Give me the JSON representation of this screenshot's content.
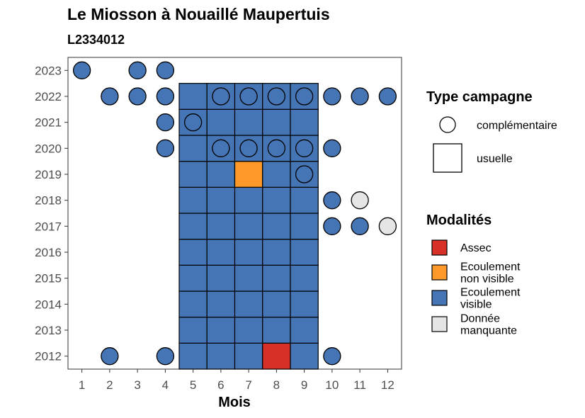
{
  "header": {
    "title": "Le Miosson à Nouaillé Maupertuis",
    "subtitle": "L2334012"
  },
  "colors": {
    "Assec": "#d73027",
    "Ecoulement non visible": "#fe9929",
    "Ecoulement visible": "#4575b4",
    "Donnée manquante": "#e5e5e5"
  },
  "legend": {
    "shape_title": "Type campagne",
    "shape_items": [
      {
        "shape": "circle",
        "label": "complémentaire"
      },
      {
        "shape": "square",
        "label": "usuelle"
      }
    ],
    "color_title": "Modalités",
    "color_items": [
      {
        "key": "Assec",
        "lines": [
          "Assec"
        ]
      },
      {
        "key": "Ecoulement non visible",
        "lines": [
          "Ecoulement",
          "non visible"
        ]
      },
      {
        "key": "Ecoulement visible",
        "lines": [
          "Ecoulement",
          "visible"
        ]
      },
      {
        "key": "Donnée manquante",
        "lines": [
          "Donnée",
          "manquante"
        ]
      }
    ]
  },
  "chart_data": {
    "type": "heatmap",
    "title": "Le Miosson à Nouaillé Maupertuis",
    "subtitle": "L2334012",
    "xlabel": "Mois",
    "ylabel": "",
    "x_ticks": [
      1,
      2,
      3,
      4,
      5,
      6,
      7,
      8,
      9,
      10,
      11,
      12
    ],
    "y_ticks": [
      2012,
      2013,
      2014,
      2015,
      2016,
      2017,
      2018,
      2019,
      2020,
      2021,
      2022,
      2023
    ],
    "xlim": [
      0.5,
      12.5
    ],
    "ylim": [
      2011.5,
      2023.5
    ],
    "usuelle": [
      {
        "year": 2012,
        "month": 5,
        "value": "Ecoulement visible"
      },
      {
        "year": 2012,
        "month": 6,
        "value": "Ecoulement visible"
      },
      {
        "year": 2012,
        "month": 7,
        "value": "Ecoulement visible"
      },
      {
        "year": 2012,
        "month": 8,
        "value": "Assec"
      },
      {
        "year": 2012,
        "month": 9,
        "value": "Ecoulement visible"
      },
      {
        "year": 2013,
        "month": 5,
        "value": "Ecoulement visible"
      },
      {
        "year": 2013,
        "month": 6,
        "value": "Ecoulement visible"
      },
      {
        "year": 2013,
        "month": 7,
        "value": "Ecoulement visible"
      },
      {
        "year": 2013,
        "month": 8,
        "value": "Ecoulement visible"
      },
      {
        "year": 2013,
        "month": 9,
        "value": "Ecoulement visible"
      },
      {
        "year": 2014,
        "month": 5,
        "value": "Ecoulement visible"
      },
      {
        "year": 2014,
        "month": 6,
        "value": "Ecoulement visible"
      },
      {
        "year": 2014,
        "month": 7,
        "value": "Ecoulement visible"
      },
      {
        "year": 2014,
        "month": 8,
        "value": "Ecoulement visible"
      },
      {
        "year": 2014,
        "month": 9,
        "value": "Ecoulement visible"
      },
      {
        "year": 2015,
        "month": 5,
        "value": "Ecoulement visible"
      },
      {
        "year": 2015,
        "month": 6,
        "value": "Ecoulement visible"
      },
      {
        "year": 2015,
        "month": 7,
        "value": "Ecoulement visible"
      },
      {
        "year": 2015,
        "month": 8,
        "value": "Ecoulement visible"
      },
      {
        "year": 2015,
        "month": 9,
        "value": "Ecoulement visible"
      },
      {
        "year": 2016,
        "month": 5,
        "value": "Ecoulement visible"
      },
      {
        "year": 2016,
        "month": 6,
        "value": "Ecoulement visible"
      },
      {
        "year": 2016,
        "month": 7,
        "value": "Ecoulement visible"
      },
      {
        "year": 2016,
        "month": 8,
        "value": "Ecoulement visible"
      },
      {
        "year": 2016,
        "month": 9,
        "value": "Ecoulement visible"
      },
      {
        "year": 2017,
        "month": 5,
        "value": "Ecoulement visible"
      },
      {
        "year": 2017,
        "month": 6,
        "value": "Ecoulement visible"
      },
      {
        "year": 2017,
        "month": 7,
        "value": "Ecoulement visible"
      },
      {
        "year": 2017,
        "month": 8,
        "value": "Ecoulement visible"
      },
      {
        "year": 2017,
        "month": 9,
        "value": "Ecoulement visible"
      },
      {
        "year": 2018,
        "month": 5,
        "value": "Ecoulement visible"
      },
      {
        "year": 2018,
        "month": 6,
        "value": "Ecoulement visible"
      },
      {
        "year": 2018,
        "month": 7,
        "value": "Ecoulement visible"
      },
      {
        "year": 2018,
        "month": 8,
        "value": "Ecoulement visible"
      },
      {
        "year": 2018,
        "month": 9,
        "value": "Ecoulement visible"
      },
      {
        "year": 2019,
        "month": 5,
        "value": "Ecoulement visible"
      },
      {
        "year": 2019,
        "month": 6,
        "value": "Ecoulement visible"
      },
      {
        "year": 2019,
        "month": 7,
        "value": "Ecoulement non visible"
      },
      {
        "year": 2019,
        "month": 8,
        "value": "Ecoulement visible"
      },
      {
        "year": 2019,
        "month": 9,
        "value": "Ecoulement visible"
      },
      {
        "year": 2020,
        "month": 5,
        "value": "Ecoulement visible"
      },
      {
        "year": 2020,
        "month": 6,
        "value": "Ecoulement visible"
      },
      {
        "year": 2020,
        "month": 7,
        "value": "Ecoulement visible"
      },
      {
        "year": 2020,
        "month": 8,
        "value": "Ecoulement visible"
      },
      {
        "year": 2020,
        "month": 9,
        "value": "Ecoulement visible"
      },
      {
        "year": 2021,
        "month": 5,
        "value": "Ecoulement visible"
      },
      {
        "year": 2021,
        "month": 6,
        "value": "Ecoulement visible"
      },
      {
        "year": 2021,
        "month": 7,
        "value": "Ecoulement visible"
      },
      {
        "year": 2021,
        "month": 8,
        "value": "Ecoulement visible"
      },
      {
        "year": 2021,
        "month": 9,
        "value": "Ecoulement visible"
      },
      {
        "year": 2022,
        "month": 5,
        "value": "Ecoulement visible"
      },
      {
        "year": 2022,
        "month": 6,
        "value": "Ecoulement visible"
      },
      {
        "year": 2022,
        "month": 7,
        "value": "Ecoulement visible"
      },
      {
        "year": 2022,
        "month": 8,
        "value": "Ecoulement visible"
      },
      {
        "year": 2022,
        "month": 9,
        "value": "Ecoulement visible"
      }
    ],
    "complementaire": [
      {
        "year": 2012,
        "month": 2,
        "value": "Ecoulement visible"
      },
      {
        "year": 2012,
        "month": 4,
        "value": "Ecoulement visible"
      },
      {
        "year": 2012,
        "month": 10,
        "value": "Ecoulement visible"
      },
      {
        "year": 2017,
        "month": 10,
        "value": "Ecoulement visible"
      },
      {
        "year": 2017,
        "month": 11,
        "value": "Ecoulement visible"
      },
      {
        "year": 2017,
        "month": 12,
        "value": "Donnée manquante"
      },
      {
        "year": 2018,
        "month": 10,
        "value": "Ecoulement visible"
      },
      {
        "year": 2018,
        "month": 11,
        "value": "Donnée manquante"
      },
      {
        "year": 2019,
        "month": 9,
        "value": "Ecoulement visible"
      },
      {
        "year": 2020,
        "month": 4,
        "value": "Ecoulement visible"
      },
      {
        "year": 2020,
        "month": 6,
        "value": "Ecoulement visible"
      },
      {
        "year": 2020,
        "month": 7,
        "value": "Ecoulement visible"
      },
      {
        "year": 2020,
        "month": 8,
        "value": "Ecoulement visible"
      },
      {
        "year": 2020,
        "month": 9,
        "value": "Ecoulement visible"
      },
      {
        "year": 2020,
        "month": 10,
        "value": "Ecoulement visible"
      },
      {
        "year": 2021,
        "month": 4,
        "value": "Ecoulement visible"
      },
      {
        "year": 2021,
        "month": 5,
        "value": "Ecoulement visible"
      },
      {
        "year": 2022,
        "month": 2,
        "value": "Ecoulement visible"
      },
      {
        "year": 2022,
        "month": 3,
        "value": "Ecoulement visible"
      },
      {
        "year": 2022,
        "month": 4,
        "value": "Ecoulement visible"
      },
      {
        "year": 2022,
        "month": 6,
        "value": "Ecoulement visible"
      },
      {
        "year": 2022,
        "month": 7,
        "value": "Ecoulement visible"
      },
      {
        "year": 2022,
        "month": 8,
        "value": "Ecoulement visible"
      },
      {
        "year": 2022,
        "month": 9,
        "value": "Ecoulement visible"
      },
      {
        "year": 2022,
        "month": 10,
        "value": "Ecoulement visible"
      },
      {
        "year": 2022,
        "month": 11,
        "value": "Ecoulement visible"
      },
      {
        "year": 2022,
        "month": 12,
        "value": "Ecoulement visible"
      },
      {
        "year": 2023,
        "month": 1,
        "value": "Ecoulement visible"
      },
      {
        "year": 2023,
        "month": 3,
        "value": "Ecoulement visible"
      },
      {
        "year": 2023,
        "month": 4,
        "value": "Ecoulement visible"
      }
    ]
  }
}
